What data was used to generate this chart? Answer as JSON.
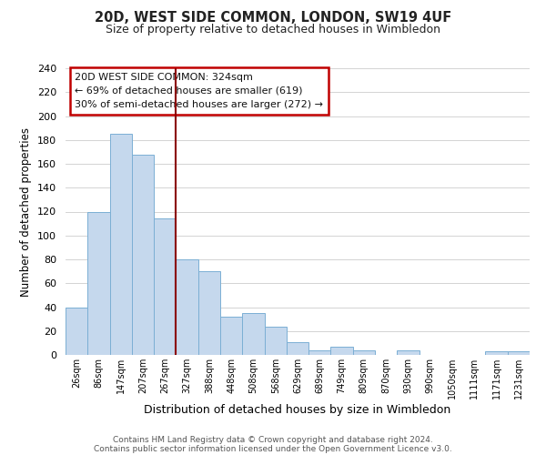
{
  "title": "20D, WEST SIDE COMMON, LONDON, SW19 4UF",
  "subtitle": "Size of property relative to detached houses in Wimbledon",
  "xlabel": "Distribution of detached houses by size in Wimbledon",
  "ylabel": "Number of detached properties",
  "bar_labels": [
    "26sqm",
    "86sqm",
    "147sqm",
    "207sqm",
    "267sqm",
    "327sqm",
    "388sqm",
    "448sqm",
    "508sqm",
    "568sqm",
    "629sqm",
    "689sqm",
    "749sqm",
    "809sqm",
    "870sqm",
    "930sqm",
    "990sqm",
    "1050sqm",
    "1111sqm",
    "1171sqm",
    "1231sqm"
  ],
  "bar_heights": [
    40,
    120,
    185,
    168,
    114,
    80,
    70,
    32,
    35,
    24,
    11,
    4,
    7,
    4,
    0,
    4,
    0,
    0,
    0,
    3,
    3
  ],
  "bar_color": "#c5d8ed",
  "bar_edge_color": "#7bafd4",
  "ylim": [
    0,
    240
  ],
  "yticks": [
    0,
    20,
    40,
    60,
    80,
    100,
    120,
    140,
    160,
    180,
    200,
    220,
    240
  ],
  "property_line_x": 5,
  "property_line_color": "#8b0000",
  "annotation_title": "20D WEST SIDE COMMON: 324sqm",
  "annotation_line1": "← 69% of detached houses are smaller (619)",
  "annotation_line2": "30% of semi-detached houses are larger (272) →",
  "annotation_box_color": "#c00000",
  "footer_line1": "Contains HM Land Registry data © Crown copyright and database right 2024.",
  "footer_line2": "Contains public sector information licensed under the Open Government Licence v3.0.",
  "background_color": "#ffffff",
  "grid_color": "#cccccc"
}
